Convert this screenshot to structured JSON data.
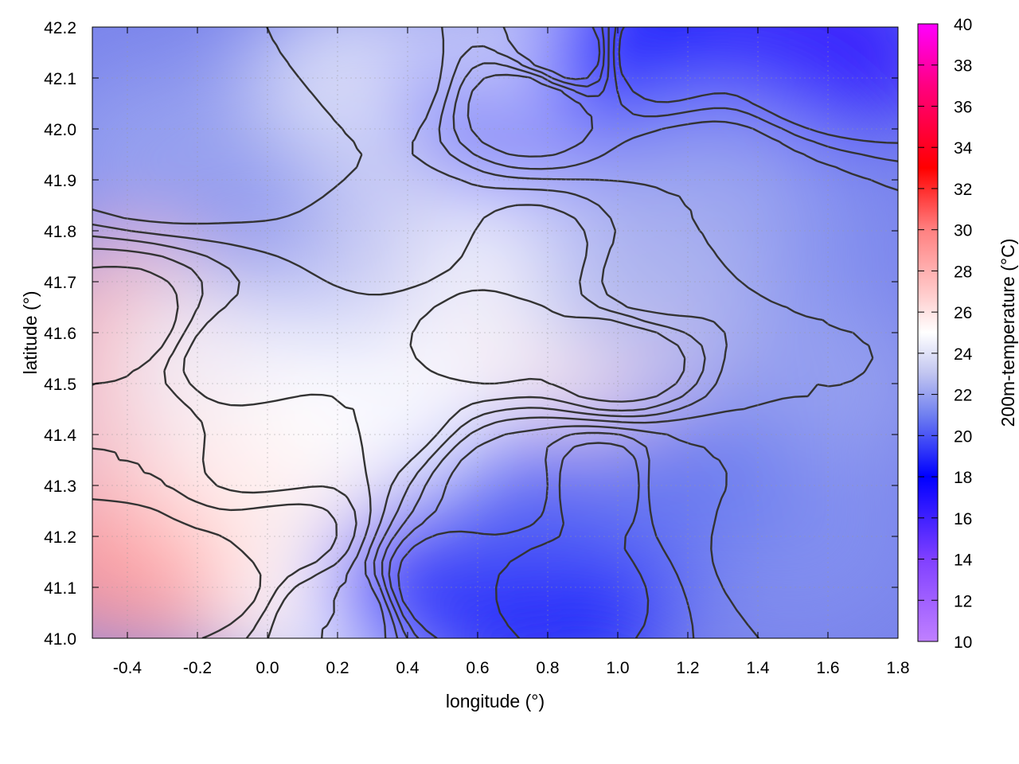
{
  "chart_data": {
    "type": "heatmap",
    "xlabel": "longitude (°)",
    "ylabel": "latitude (°)",
    "colorbar_label": "200m-temperature (°C)",
    "xlim": [
      -0.5,
      1.8
    ],
    "ylim": [
      41.0,
      42.2
    ],
    "x_ticks": [
      "-0.4",
      "-0.2",
      "0.0",
      "0.2",
      "0.4",
      "0.6",
      "0.8",
      "1.0",
      "1.2",
      "1.4",
      "1.6",
      "1.8"
    ],
    "x_tick_values": [
      -0.4,
      -0.2,
      0.0,
      0.2,
      0.4,
      0.6,
      0.8,
      1.0,
      1.2,
      1.4,
      1.6,
      1.8
    ],
    "y_ticks": [
      "41.0",
      "41.1",
      "41.2",
      "41.3",
      "41.4",
      "41.5",
      "41.6",
      "41.7",
      "41.8",
      "41.9",
      "42.0",
      "42.1",
      "42.2"
    ],
    "y_tick_values": [
      41.0,
      41.1,
      41.2,
      41.3,
      41.4,
      41.5,
      41.6,
      41.7,
      41.8,
      41.9,
      42.0,
      42.1,
      42.2
    ],
    "colorbar_range": [
      10,
      40
    ],
    "colorbar_ticks": [
      "10",
      "12",
      "14",
      "16",
      "18",
      "20",
      "22",
      "24",
      "26",
      "28",
      "30",
      "32",
      "34",
      "36",
      "38",
      "40"
    ],
    "colorbar_tick_values": [
      10,
      12,
      14,
      16,
      18,
      20,
      22,
      24,
      26,
      28,
      30,
      32,
      34,
      36,
      38,
      40
    ],
    "colormap": [
      {
        "value": 10,
        "color": "#c080ff"
      },
      {
        "value": 14,
        "color": "#8040ff"
      },
      {
        "value": 18,
        "color": "#0000ff"
      },
      {
        "value": 21,
        "color": "#7080f0"
      },
      {
        "value": 23,
        "color": "#c0c4f0"
      },
      {
        "value": 25,
        "color": "#ffffff"
      },
      {
        "value": 27,
        "color": "#ffc8c8"
      },
      {
        "value": 30,
        "color": "#ff8080"
      },
      {
        "value": 33,
        "color": "#ff0000"
      },
      {
        "value": 37,
        "color": "#ff0080"
      },
      {
        "value": 40,
        "color": "#ff00ff"
      }
    ],
    "grid": true,
    "contours": true,
    "field_samples": [
      {
        "lon": -0.45,
        "lat": 41.15,
        "temp": 29
      },
      {
        "lon": -0.15,
        "lat": 41.12,
        "temp": 28.5
      },
      {
        "lon": 0.05,
        "lat": 41.2,
        "temp": 27.5
      },
      {
        "lon": -0.4,
        "lat": 41.4,
        "temp": 27
      },
      {
        "lon": -0.4,
        "lat": 41.62,
        "temp": 27.5
      },
      {
        "lon": -0.1,
        "lat": 41.55,
        "temp": 24.5
      },
      {
        "lon": 0.0,
        "lat": 41.35,
        "temp": 25.5
      },
      {
        "lon": 0.2,
        "lat": 41.05,
        "temp": 25
      },
      {
        "lon": 0.5,
        "lat": 41.1,
        "temp": 19
      },
      {
        "lon": 0.85,
        "lat": 41.1,
        "temp": 18.5
      },
      {
        "lon": 0.95,
        "lat": 41.3,
        "temp": 18
      },
      {
        "lon": 0.7,
        "lat": 41.3,
        "temp": 20.5
      },
      {
        "lon": 1.0,
        "lat": 41.55,
        "temp": 26
      },
      {
        "lon": 0.65,
        "lat": 41.6,
        "temp": 25.5
      },
      {
        "lon": 0.3,
        "lat": 41.45,
        "temp": 25
      },
      {
        "lon": 0.4,
        "lat": 41.8,
        "temp": 23.5
      },
      {
        "lon": 0.75,
        "lat": 41.75,
        "temp": 24.5
      },
      {
        "lon": 0.0,
        "lat": 42.0,
        "temp": 22
      },
      {
        "lon": -0.3,
        "lat": 41.95,
        "temp": 22
      },
      {
        "lon": 0.3,
        "lat": 42.1,
        "temp": 24
      },
      {
        "lon": 0.75,
        "lat": 42.05,
        "temp": 19
      },
      {
        "lon": 0.85,
        "lat": 42.15,
        "temp": 24
      },
      {
        "lon": 1.1,
        "lat": 42.15,
        "temp": 18
      },
      {
        "lon": 1.6,
        "lat": 42.15,
        "temp": 16.5
      },
      {
        "lon": 1.45,
        "lat": 41.8,
        "temp": 21.5
      },
      {
        "lon": 1.55,
        "lat": 41.5,
        "temp": 22
      },
      {
        "lon": 1.5,
        "lat": 41.2,
        "temp": 21.5
      },
      {
        "lon": 1.2,
        "lat": 41.3,
        "temp": 21
      },
      {
        "lon": 1.25,
        "lat": 41.9,
        "temp": 22
      },
      {
        "lon": 1.1,
        "lat": 41.7,
        "temp": 22.5
      }
    ]
  }
}
